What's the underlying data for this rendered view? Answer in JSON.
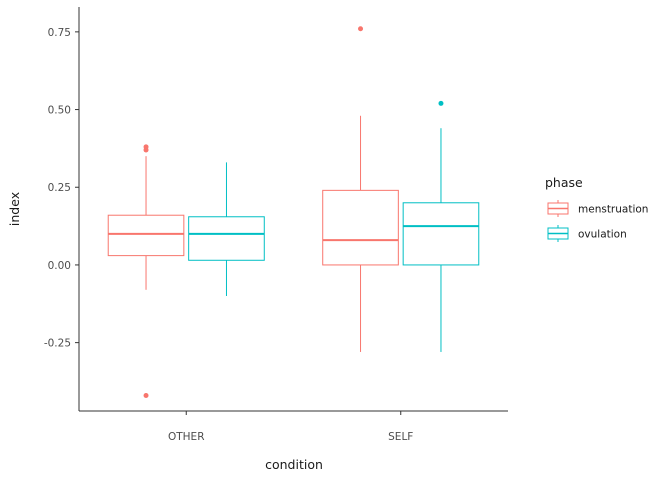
{
  "chart_data": {
    "type": "boxplot",
    "xlabel": "condition",
    "ylabel": "index",
    "categories": [
      "OTHER",
      "SELF"
    ],
    "ylim": [
      -0.47,
      0.83
    ],
    "yticks": [
      -0.25,
      0.0,
      0.25,
      0.5,
      0.75
    ],
    "ytick_labels": [
      "-0.25",
      "0.00",
      "0.25",
      "0.50",
      "0.75"
    ],
    "grid": false,
    "legend": {
      "title": "phase",
      "placement": "right",
      "entries": [
        "menstruation",
        "ovulation"
      ]
    },
    "series": [
      {
        "name": "menstruation",
        "color": "#F8766D",
        "boxes": [
          {
            "category": "OTHER",
            "whisker_low": -0.08,
            "q1": 0.03,
            "median": 0.1,
            "q3": 0.16,
            "whisker_high": 0.35,
            "outliers": [
              0.38,
              0.37,
              -0.42
            ]
          },
          {
            "category": "SELF",
            "whisker_low": -0.28,
            "q1": 0.0,
            "median": 0.08,
            "q3": 0.24,
            "whisker_high": 0.48,
            "outliers": [
              0.76
            ]
          }
        ]
      },
      {
        "name": "ovulation",
        "color": "#00BFC4",
        "boxes": [
          {
            "category": "OTHER",
            "whisker_low": -0.1,
            "q1": 0.015,
            "median": 0.1,
            "q3": 0.155,
            "whisker_high": 0.33,
            "outliers": []
          },
          {
            "category": "SELF",
            "whisker_low": -0.28,
            "q1": 0.0,
            "median": 0.125,
            "q3": 0.2,
            "whisker_high": 0.44,
            "outliers": [
              0.52
            ]
          }
        ]
      }
    ]
  }
}
